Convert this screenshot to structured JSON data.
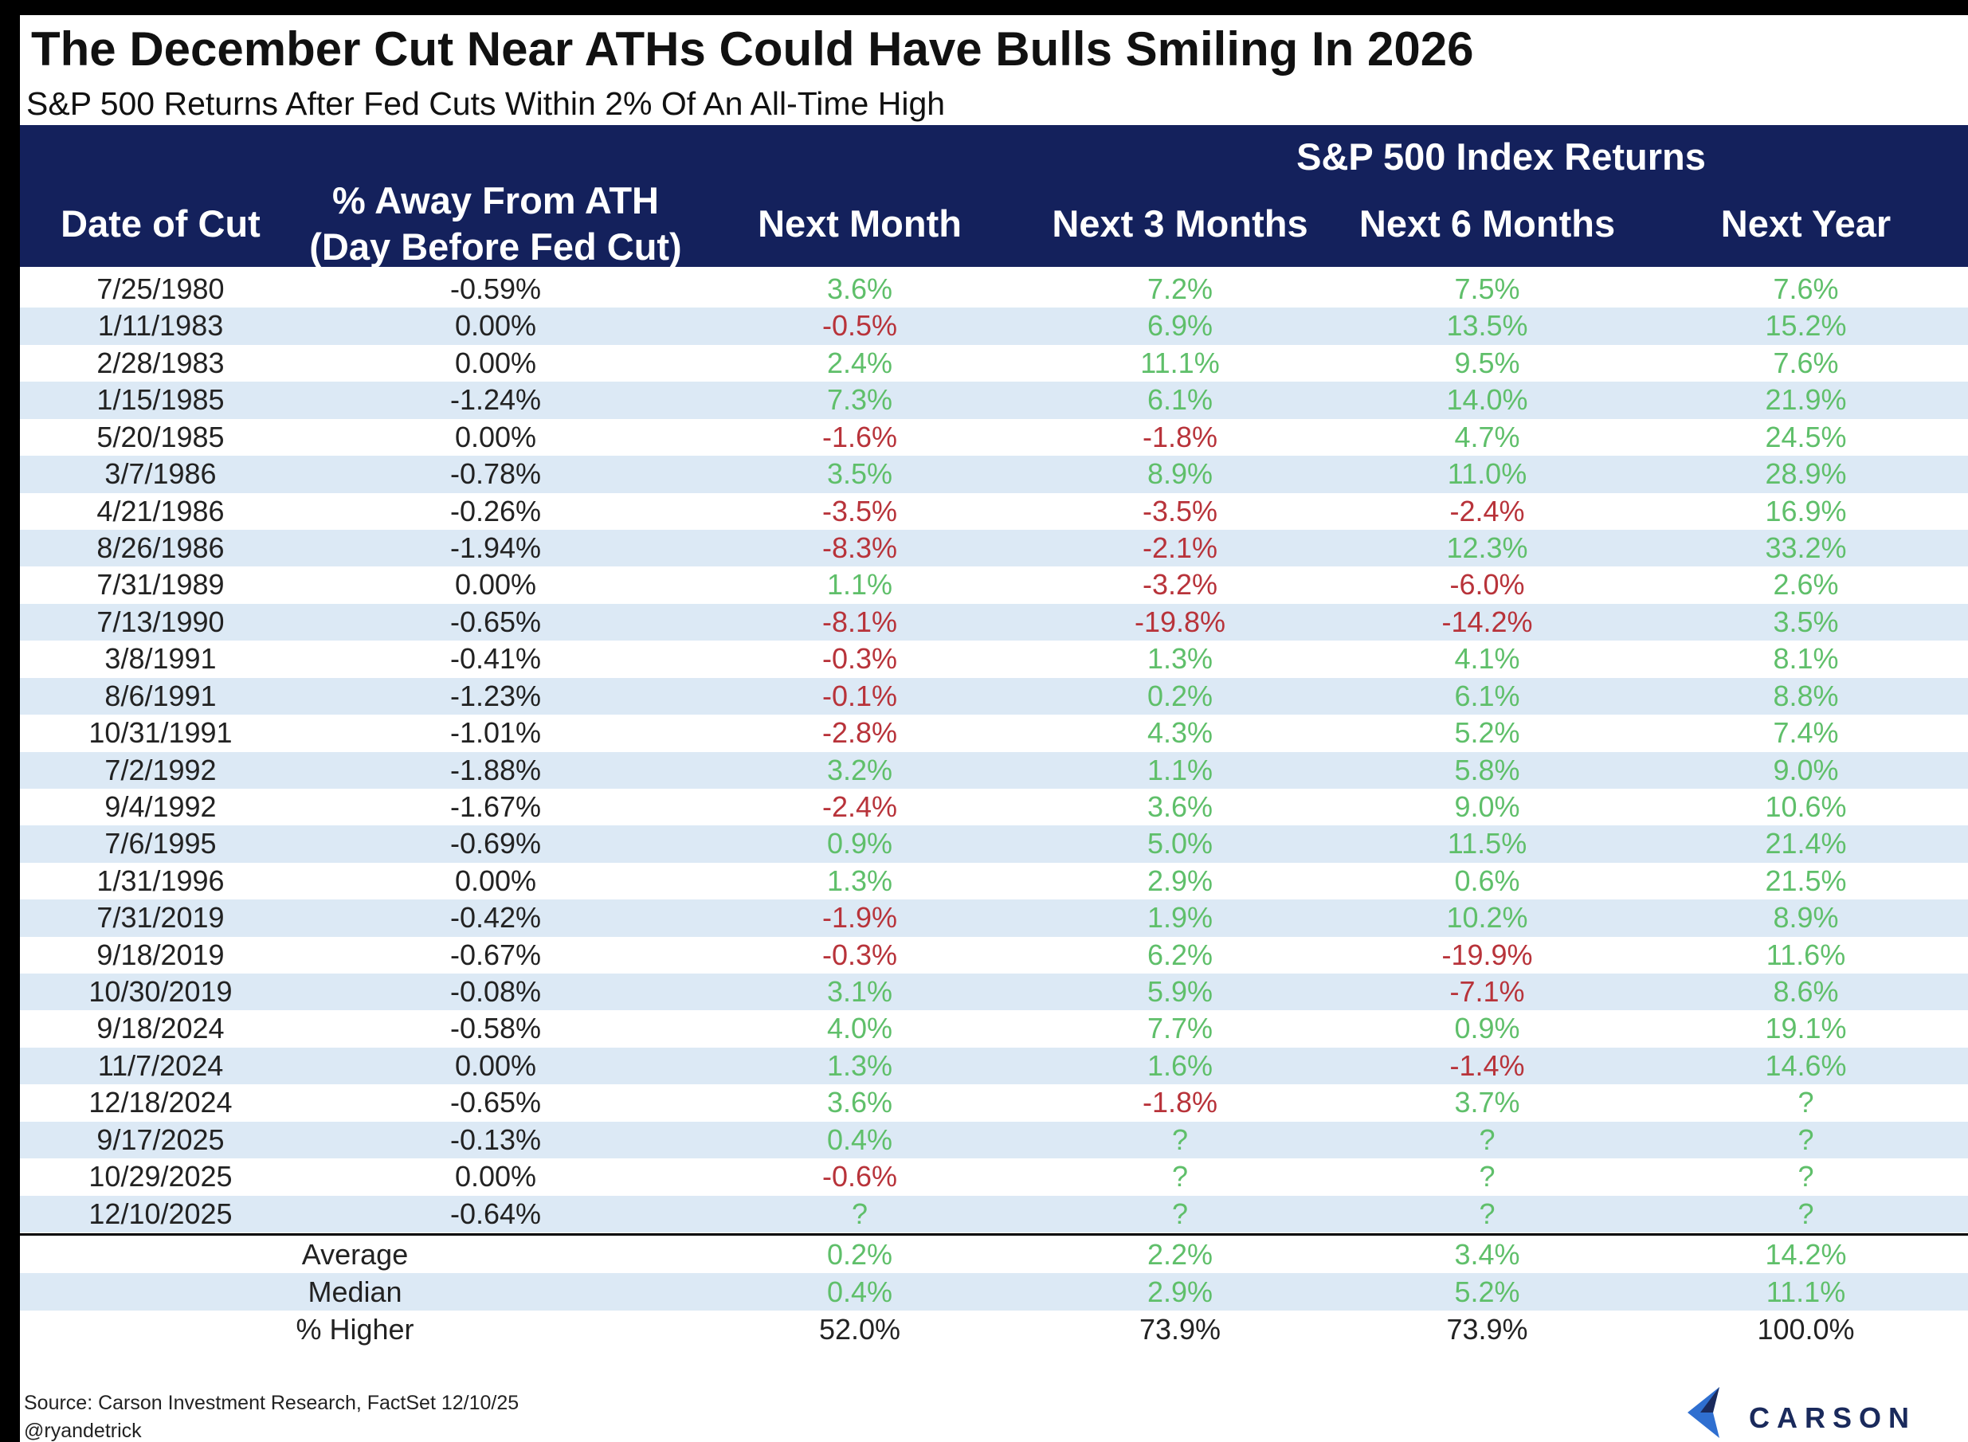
{
  "header": {
    "title": "The December Cut Near ATHs Could Have Bulls Smiling In 2026",
    "subtitle": "S&P 500 Returns After Fed Cuts Within 2% Of An All-Time High"
  },
  "table": {
    "group_header": "S&P 500 Index Returns",
    "columns": [
      "Date of Cut",
      "% Away From ATH\n(Day Before Fed Cut)",
      "Next Month",
      "Next 3 Months",
      "Next 6 Months",
      "Next Year"
    ],
    "rows": [
      [
        "7/25/1980",
        "-0.59%",
        "3.6%",
        "7.2%",
        "7.5%",
        "7.6%"
      ],
      [
        "1/11/1983",
        "0.00%",
        "-0.5%",
        "6.9%",
        "13.5%",
        "15.2%"
      ],
      [
        "2/28/1983",
        "0.00%",
        "2.4%",
        "11.1%",
        "9.5%",
        "7.6%"
      ],
      [
        "1/15/1985",
        "-1.24%",
        "7.3%",
        "6.1%",
        "14.0%",
        "21.9%"
      ],
      [
        "5/20/1985",
        "0.00%",
        "-1.6%",
        "-1.8%",
        "4.7%",
        "24.5%"
      ],
      [
        "3/7/1986",
        "-0.78%",
        "3.5%",
        "8.9%",
        "11.0%",
        "28.9%"
      ],
      [
        "4/21/1986",
        "-0.26%",
        "-3.5%",
        "-3.5%",
        "-2.4%",
        "16.9%"
      ],
      [
        "8/26/1986",
        "-1.94%",
        "-8.3%",
        "-2.1%",
        "12.3%",
        "33.2%"
      ],
      [
        "7/31/1989",
        "0.00%",
        "1.1%",
        "-3.2%",
        "-6.0%",
        "2.6%"
      ],
      [
        "7/13/1990",
        "-0.65%",
        "-8.1%",
        "-19.8%",
        "-14.2%",
        "3.5%"
      ],
      [
        "3/8/1991",
        "-0.41%",
        "-0.3%",
        "1.3%",
        "4.1%",
        "8.1%"
      ],
      [
        "8/6/1991",
        "-1.23%",
        "-0.1%",
        "0.2%",
        "6.1%",
        "8.8%"
      ],
      [
        "10/31/1991",
        "-1.01%",
        "-2.8%",
        "4.3%",
        "5.2%",
        "7.4%"
      ],
      [
        "7/2/1992",
        "-1.88%",
        "3.2%",
        "1.1%",
        "5.8%",
        "9.0%"
      ],
      [
        "9/4/1992",
        "-1.67%",
        "-2.4%",
        "3.6%",
        "9.0%",
        "10.6%"
      ],
      [
        "7/6/1995",
        "-0.69%",
        "0.9%",
        "5.0%",
        "11.5%",
        "21.4%"
      ],
      [
        "1/31/1996",
        "0.00%",
        "1.3%",
        "2.9%",
        "0.6%",
        "21.5%"
      ],
      [
        "7/31/2019",
        "-0.42%",
        "-1.9%",
        "1.9%",
        "10.2%",
        "8.9%"
      ],
      [
        "9/18/2019",
        "-0.67%",
        "-0.3%",
        "6.2%",
        "-19.9%",
        "11.6%"
      ],
      [
        "10/30/2019",
        "-0.08%",
        "3.1%",
        "5.9%",
        "-7.1%",
        "8.6%"
      ],
      [
        "9/18/2024",
        "-0.58%",
        "4.0%",
        "7.7%",
        "0.9%",
        "19.1%"
      ],
      [
        "11/7/2024",
        "0.00%",
        "1.3%",
        "1.6%",
        "-1.4%",
        "14.6%"
      ],
      [
        "12/18/2024",
        "-0.65%",
        "3.6%",
        "-1.8%",
        "3.7%",
        "?"
      ],
      [
        "9/17/2025",
        "-0.13%",
        "0.4%",
        "?",
        "?",
        "?"
      ],
      [
        "10/29/2025",
        "0.00%",
        "-0.6%",
        "?",
        "?",
        "?"
      ],
      [
        "12/10/2025",
        "-0.64%",
        "?",
        "?",
        "?",
        "?"
      ]
    ],
    "summary": [
      [
        "Average",
        "0.2%",
        "2.2%",
        "3.4%",
        "14.2%"
      ],
      [
        "Median",
        "0.4%",
        "2.9%",
        "5.2%",
        "11.1%"
      ],
      [
        "% Higher",
        "52.0%",
        "73.9%",
        "73.9%",
        "100.0%"
      ]
    ]
  },
  "footer": {
    "source": "Source: Carson Investment Research, FactSet 12/10/25",
    "handle": "@ryandetrick"
  },
  "logo": "CARSON"
}
